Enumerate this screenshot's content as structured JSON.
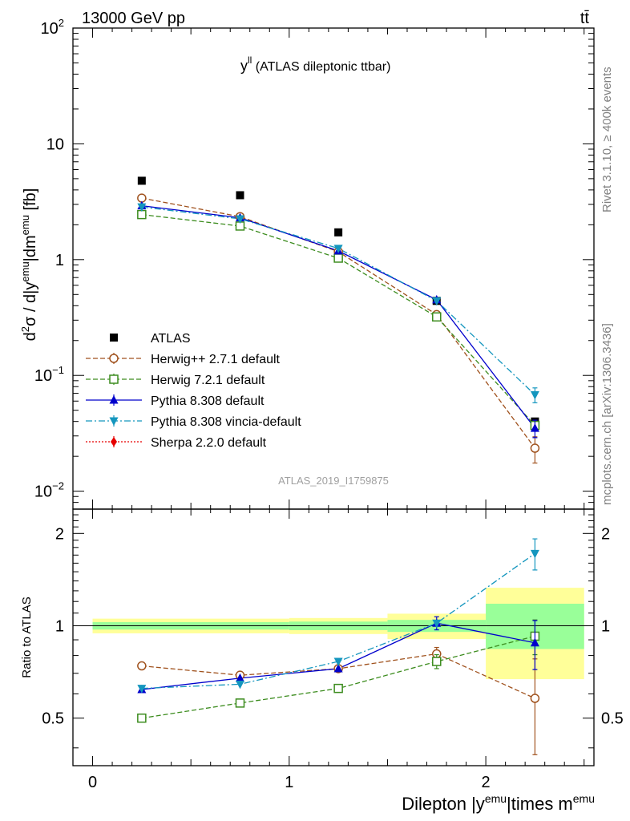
{
  "header": {
    "energy_label": "13000 GeV pp",
    "process_label": "tt̄"
  },
  "side_labels": {
    "rivet": "Rivet 3.1.10, ≥ 400k events",
    "mcplots": "mcplots.cern.ch [arXiv:1306.3436]"
  },
  "colors": {
    "atlas": "#000000",
    "herwigpp": "#a0521e",
    "herwig7": "#3c8c1e",
    "pythia": "#0000cc",
    "vincia": "#1496be",
    "sherpa": "#e60000",
    "band_inner": "#99ff99",
    "band_outer": "#ffff99"
  },
  "chart_data": [
    {
      "type": "scatter",
      "panel": "main",
      "title": "y^ll (ATLAS dileptonic ttbar)",
      "title_main": "y",
      "title_sup": "ll",
      "title_rest": " (ATLAS dileptonic ttbar)",
      "ylabel": "d²σ / d|y^emu|dm^emu [fb]",
      "ylabel_parts": [
        "d",
        "2",
        "σ / d|y",
        "emu",
        "|dm",
        "emu",
        " [fb]"
      ],
      "y_scale": "log",
      "ylim": [
        0.007,
        100
      ],
      "xlim": [
        -0.1,
        2.55
      ],
      "x_ticks": [
        0,
        1,
        2
      ],
      "y_tick_labels": [
        {
          "value": 100,
          "base": "10",
          "exp": "2"
        },
        {
          "value": 10,
          "base": "10",
          "exp": ""
        },
        {
          "value": 1,
          "base": "1",
          "exp": ""
        },
        {
          "value": 0.1,
          "base": "10",
          "exp": "−1"
        },
        {
          "value": 0.01,
          "base": "10",
          "exp": "−2"
        }
      ],
      "watermark": "ATLAS_2019_I1759875",
      "legend_position": "lower-left",
      "x": [
        0.25,
        0.75,
        1.25,
        1.75,
        2.25
      ],
      "series": [
        {
          "name": "ATLAS",
          "key": "atlas",
          "marker": "square-filled",
          "line": "none",
          "values": [
            4.8,
            3.6,
            1.72,
            0.44,
            0.04
          ]
        },
        {
          "name": "Herwig++ 2.7.1 default",
          "key": "herwigpp",
          "marker": "circle-open",
          "line": "dashed",
          "values": [
            3.4,
            2.35,
            1.17,
            0.335,
            0.0235
          ],
          "errors": [
            null,
            null,
            null,
            null,
            0.006
          ]
        },
        {
          "name": "Herwig 7.2.1 default",
          "key": "herwig7",
          "marker": "square-open",
          "line": "dashed",
          "values": [
            2.45,
            1.95,
            1.03,
            0.32,
            0.037
          ]
        },
        {
          "name": "Pythia 8.308 default",
          "key": "pythia",
          "marker": "triangle-up",
          "line": "solid",
          "values": [
            2.92,
            2.3,
            1.19,
            0.45,
            0.035
          ],
          "errors": [
            null,
            null,
            null,
            null,
            0.006
          ]
        },
        {
          "name": "Pythia 8.308 vincia-default",
          "key": "vincia",
          "marker": "triangle-down",
          "line": "dashdot",
          "values": [
            2.85,
            2.25,
            1.25,
            0.44,
            0.068
          ],
          "errors": [
            null,
            null,
            null,
            null,
            0.01
          ]
        },
        {
          "name": "Sherpa 2.2.0 default",
          "key": "sherpa",
          "marker": "diamond",
          "line": "dotted",
          "values": []
        }
      ]
    },
    {
      "type": "scatter",
      "panel": "ratio",
      "ylabel": "Ratio to ATLAS",
      "xlabel": "Dilepton |y^emu|times m^emu",
      "xlabel_parts": [
        "Dilepton |y",
        "emu",
        "|times m",
        "emu"
      ],
      "ylim": [
        0.35,
        2.4
      ],
      "xlim": [
        -0.1,
        2.55
      ],
      "x_ticks": [
        0,
        1,
        2
      ],
      "x_tick_labels": [
        "0",
        "1",
        "2"
      ],
      "y_tick_labels": [
        {
          "value": 0.5,
          "label": "0.5"
        },
        {
          "value": 1,
          "label": "1"
        },
        {
          "value": 2,
          "label": "2"
        }
      ],
      "bands": [
        {
          "x0": 0,
          "x1": 1,
          "inner": [
            0.972,
            1.028
          ],
          "outer": [
            0.945,
            1.055
          ]
        },
        {
          "x0": 1,
          "x1": 1.5,
          "inner": [
            0.968,
            1.032
          ],
          "outer": [
            0.94,
            1.06
          ]
        },
        {
          "x0": 1.5,
          "x1": 2,
          "inner": [
            0.955,
            1.045
          ],
          "outer": [
            0.905,
            1.095
          ]
        },
        {
          "x0": 2,
          "x1": 2.5,
          "inner": [
            0.84,
            1.18
          ],
          "outer": [
            0.67,
            1.33
          ]
        }
      ],
      "x": [
        0.25,
        0.75,
        1.25,
        1.75,
        2.25
      ],
      "series": [
        {
          "name": "Herwig++ 2.7.1 default",
          "key": "herwigpp",
          "marker": "circle-open",
          "line": "dashed",
          "values": [
            0.74,
            0.69,
            0.725,
            0.81,
            0.58
          ],
          "errors": [
            null,
            null,
            null,
            0.04,
            0.2
          ]
        },
        {
          "name": "Herwig 7.2.1 default",
          "key": "herwig7",
          "marker": "square-open",
          "line": "dashed",
          "values": [
            0.5,
            0.56,
            0.625,
            0.765,
            0.925
          ],
          "errors": [
            null,
            null,
            null,
            0.04,
            0.12
          ]
        },
        {
          "name": "Pythia 8.308 default",
          "key": "pythia",
          "marker": "triangle-up",
          "line": "solid",
          "values": [
            0.62,
            0.675,
            0.725,
            1.02,
            0.88
          ],
          "errors": [
            null,
            null,
            null,
            0.05,
            0.16
          ]
        },
        {
          "name": "Pythia 8.308 vincia-default",
          "key": "vincia",
          "marker": "triangle-down",
          "line": "dashdot",
          "values": [
            0.625,
            0.645,
            0.765,
            1.02,
            1.72
          ],
          "errors": [
            null,
            null,
            null,
            null,
            0.2
          ]
        }
      ]
    }
  ]
}
